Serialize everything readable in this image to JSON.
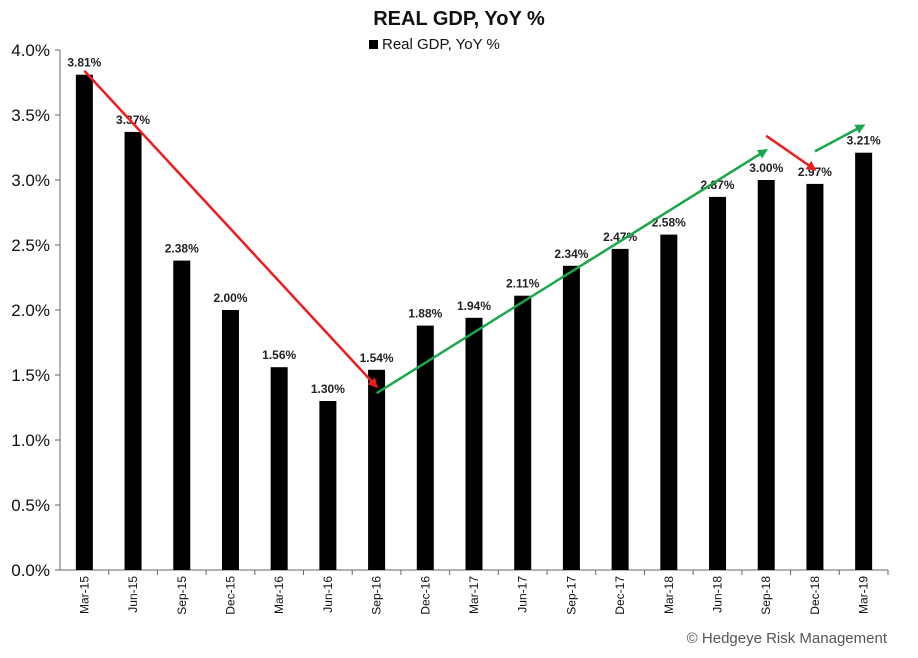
{
  "chart_data": {
    "type": "bar",
    "title": "REAL GDP,  YoY %",
    "legend": {
      "label": "Real GDP, YoY %",
      "placement": "top-center"
    },
    "categories": [
      "Mar-15",
      "Jun-15",
      "Sep-15",
      "Dec-15",
      "Mar-16",
      "Jun-16",
      "Sep-16",
      "Dec-16",
      "Mar-17",
      "Jun-17",
      "Sep-17",
      "Dec-17",
      "Mar-18",
      "Jun-18",
      "Sep-18",
      "Dec-18",
      "Mar-19"
    ],
    "values": [
      3.81,
      3.37,
      2.38,
      2.0,
      1.56,
      1.3,
      1.54,
      1.88,
      1.94,
      2.11,
      2.34,
      2.47,
      2.58,
      2.87,
      3.0,
      2.97,
      3.21
    ],
    "data_labels": [
      "3.81%",
      "3.37%",
      "2.38%",
      "2.00%",
      "1.56%",
      "1.30%",
      "1.54%",
      "1.88%",
      "1.94%",
      "2.11%",
      "2.34%",
      "2.47%",
      "2.58%",
      "2.87%",
      "3.00%",
      "2.97%",
      "3.21%"
    ],
    "yticks": [
      "0.0%",
      "0.5%",
      "1.0%",
      "1.5%",
      "2.0%",
      "2.5%",
      "3.0%",
      "3.5%",
      "4.0%"
    ],
    "ylim": [
      0,
      4.0
    ],
    "ytick_step": 0.5,
    "xlabel": "",
    "ylabel": "",
    "grid": false,
    "bar_color": "#000000",
    "annotations": [
      {
        "type": "arrow",
        "color": "#ee1c1c",
        "from": {
          "x": "Mar-15",
          "y": 3.84
        },
        "to": {
          "x": "Sep-16",
          "y": 1.41
        }
      },
      {
        "type": "arrow",
        "color": "#1aa84a",
        "from": {
          "x": "Sep-16",
          "y": 1.36
        },
        "to": {
          "x": "Sep-18",
          "y": 3.23
        }
      },
      {
        "type": "arrow",
        "color": "#ee1c1c",
        "from": {
          "x": "Sep-18",
          "y": 3.34
        },
        "to": {
          "x": "Dec-18",
          "y": 3.08
        }
      },
      {
        "type": "arrow",
        "color": "#1aa84a",
        "from": {
          "x": "Dec-18",
          "y": 3.22
        },
        "to": {
          "x": "Mar-19",
          "y": 3.42
        }
      }
    ]
  },
  "credit": "© Hedgeye Risk Management"
}
